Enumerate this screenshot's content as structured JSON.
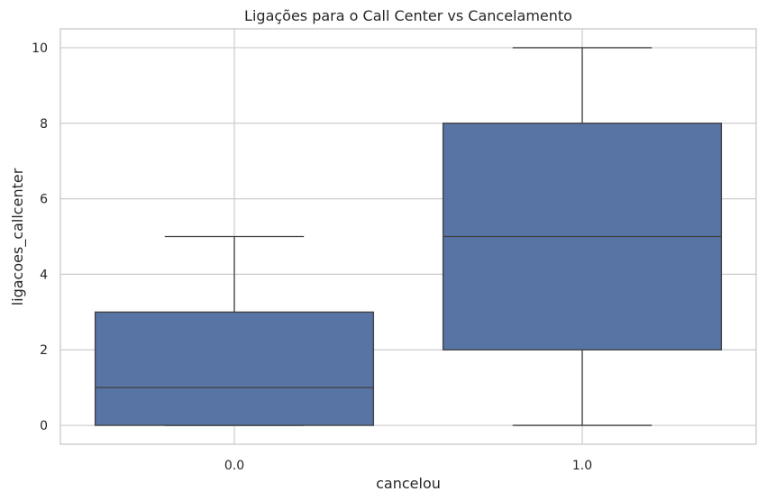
{
  "chart_data": {
    "type": "box",
    "title": "Ligações para o Call Center vs Cancelamento",
    "xlabel": "cancelou",
    "ylabel": "ligacoes_callcenter",
    "categories": [
      "0.0",
      "1.0"
    ],
    "boxes": [
      {
        "category": "0.0",
        "whisker_low": 0,
        "q1": 0,
        "median": 1,
        "q3": 3,
        "whisker_high": 5
      },
      {
        "category": "1.0",
        "whisker_low": 0,
        "q1": 2,
        "median": 5,
        "q3": 8,
        "whisker_high": 10
      }
    ],
    "ylim": [
      -0.5,
      10.5
    ],
    "yticks": [
      0,
      2,
      4,
      6,
      8,
      10
    ],
    "grid": true,
    "color": "#5874a4",
    "edge_color": "#3f3f3f"
  }
}
